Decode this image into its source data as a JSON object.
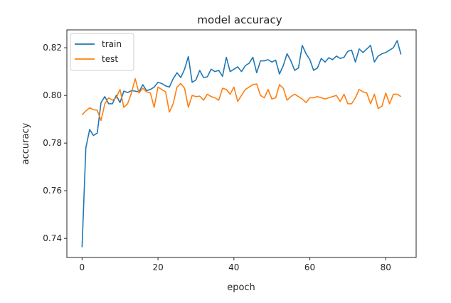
{
  "chart_data": {
    "type": "line",
    "title": "model accuracy",
    "xlabel": "epoch",
    "ylabel": "accuracy",
    "xlim": [
      -4,
      88
    ],
    "ylim": [
      0.732,
      0.8275
    ],
    "xticks": [
      0,
      20,
      40,
      60,
      80
    ],
    "yticks": [
      0.74,
      0.76,
      0.78,
      0.8,
      0.82
    ],
    "ytick_labels": [
      "0.74",
      "0.76",
      "0.78",
      "0.80",
      "0.82"
    ],
    "grid": false,
    "legend_position": "upper-left",
    "series": [
      {
        "name": "train",
        "color": "#1f77b4",
        "x": [
          0,
          1,
          2,
          3,
          4,
          5,
          6,
          7,
          8,
          9,
          10,
          11,
          12,
          13,
          14,
          15,
          16,
          17,
          18,
          19,
          20,
          21,
          22,
          23,
          24,
          25,
          26,
          27,
          28,
          29,
          30,
          31,
          32,
          33,
          34,
          35,
          36,
          37,
          38,
          39,
          40,
          41,
          42,
          43,
          44,
          45,
          46,
          47,
          48,
          49,
          50,
          51,
          52,
          53,
          54,
          55,
          56,
          57,
          58,
          59,
          60,
          61,
          62,
          63,
          64,
          65,
          66,
          67,
          68,
          69,
          70,
          71,
          72,
          73,
          74,
          75,
          76,
          77,
          78,
          79,
          80,
          81,
          82,
          83,
          84
        ],
        "values": [
          0.7363,
          0.778,
          0.7857,
          0.7832,
          0.7842,
          0.797,
          0.7995,
          0.7965,
          0.7965,
          0.8,
          0.797,
          0.8018,
          0.8012,
          0.802,
          0.8018,
          0.8015,
          0.8045,
          0.802,
          0.8025,
          0.8035,
          0.8055,
          0.805,
          0.804,
          0.8035,
          0.807,
          0.8095,
          0.8075,
          0.811,
          0.8163,
          0.8055,
          0.8065,
          0.8105,
          0.8075,
          0.8078,
          0.811,
          0.81,
          0.8105,
          0.808,
          0.816,
          0.81,
          0.811,
          0.812,
          0.81,
          0.8125,
          0.8135,
          0.816,
          0.8095,
          0.8145,
          0.8145,
          0.815,
          0.814,
          0.8148,
          0.809,
          0.8125,
          0.8175,
          0.8145,
          0.8105,
          0.8115,
          0.821,
          0.8175,
          0.815,
          0.8105,
          0.8115,
          0.8155,
          0.814,
          0.8158,
          0.815,
          0.8165,
          0.8155,
          0.816,
          0.8185,
          0.819,
          0.814,
          0.8195,
          0.818,
          0.8195,
          0.821,
          0.814,
          0.8165,
          0.8175,
          0.818,
          0.819,
          0.82,
          0.823,
          0.8172
        ]
      },
      {
        "name": "test",
        "color": "#ff7f0e",
        "x": [
          0,
          1,
          2,
          3,
          4,
          5,
          6,
          7,
          8,
          9,
          10,
          11,
          12,
          13,
          14,
          15,
          16,
          17,
          18,
          19,
          20,
          21,
          22,
          23,
          24,
          25,
          26,
          27,
          28,
          29,
          30,
          31,
          32,
          33,
          34,
          35,
          36,
          37,
          38,
          39,
          40,
          41,
          42,
          43,
          44,
          45,
          46,
          47,
          48,
          49,
          50,
          51,
          52,
          53,
          54,
          55,
          56,
          57,
          58,
          59,
          60,
          61,
          62,
          63,
          64,
          65,
          66,
          67,
          68,
          69,
          70,
          71,
          72,
          73,
          74,
          75,
          76,
          77,
          78,
          79,
          80,
          81,
          82,
          83,
          84
        ],
        "values": [
          0.7918,
          0.7935,
          0.7948,
          0.794,
          0.7938,
          0.7895,
          0.7965,
          0.799,
          0.798,
          0.799,
          0.8025,
          0.795,
          0.7965,
          0.801,
          0.807,
          0.801,
          0.803,
          0.8015,
          0.801,
          0.795,
          0.8035,
          0.8025,
          0.8015,
          0.793,
          0.7965,
          0.8035,
          0.805,
          0.803,
          0.795,
          0.8,
          0.7995,
          0.7997,
          0.798,
          0.8005,
          0.7995,
          0.799,
          0.798,
          0.803,
          0.8025,
          0.8005,
          0.8035,
          0.7975,
          0.8,
          0.8025,
          0.8035,
          0.8045,
          0.8048,
          0.8,
          0.799,
          0.8025,
          0.7985,
          0.799,
          0.8045,
          0.803,
          0.798,
          0.7995,
          0.8005,
          0.7995,
          0.7985,
          0.797,
          0.799,
          0.799,
          0.7995,
          0.799,
          0.7985,
          0.799,
          0.7995,
          0.8,
          0.7975,
          0.8005,
          0.7965,
          0.7965,
          0.799,
          0.8025,
          0.8015,
          0.801,
          0.7965,
          0.8005,
          0.7945,
          0.7955,
          0.801,
          0.7965,
          0.8005,
          0.8005,
          0.7995
        ]
      }
    ]
  }
}
